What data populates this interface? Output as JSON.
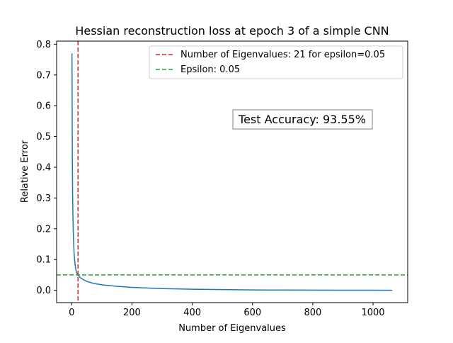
{
  "chart_data": {
    "type": "line",
    "title": "Hessian reconstruction loss at epoch 3 of a simple CNN",
    "xlabel": "Number of Eigenvalues",
    "ylabel": "Relative Error",
    "xlim": [
      -50,
      1115
    ],
    "ylim": [
      -0.04,
      0.81
    ],
    "xticks": [
      0,
      200,
      400,
      600,
      800,
      1000
    ],
    "yticks": [
      0.0,
      0.1,
      0.2,
      0.3,
      0.4,
      0.5,
      0.6,
      0.7,
      0.8
    ],
    "xtick_labels": [
      "0",
      "200",
      "400",
      "600",
      "800",
      "1000"
    ],
    "ytick_labels": [
      "0.0",
      "0.1",
      "0.2",
      "0.3",
      "0.4",
      "0.5",
      "0.6",
      "0.7",
      "0.8"
    ],
    "grid": false,
    "legend_placement": "top-right",
    "series": [
      {
        "color": "#1f77b4",
        "x": [
          1,
          2,
          3,
          4,
          5,
          6,
          8,
          10,
          12,
          15,
          18,
          21,
          25,
          30,
          40,
          50,
          70,
          100,
          150,
          200,
          300,
          400,
          500,
          600,
          700,
          800,
          900,
          1000,
          1064
        ],
        "y": [
          0.77,
          0.45,
          0.32,
          0.25,
          0.2,
          0.165,
          0.12,
          0.095,
          0.078,
          0.062,
          0.054,
          0.05,
          0.045,
          0.04,
          0.034,
          0.029,
          0.023,
          0.018,
          0.013,
          0.0095,
          0.0055,
          0.0035,
          0.0022,
          0.0013,
          0.0008,
          0.0005,
          0.0003,
          0.0002,
          0.0001
        ]
      }
    ],
    "reference_lines": [
      {
        "orientation": "vertical",
        "value": 21,
        "color": "#d62728",
        "style": "dashed",
        "legend_label": "Number of Eigenvalues: 21 for epsilon=0.05"
      },
      {
        "orientation": "horizontal",
        "value": 0.05,
        "color": "#2ca02c",
        "style": "dashed",
        "legend_label": "Epsilon: 0.05"
      }
    ],
    "annotation": {
      "text": "Test Accuracy: 93.55%",
      "x": 763,
      "y": 0.555
    }
  }
}
